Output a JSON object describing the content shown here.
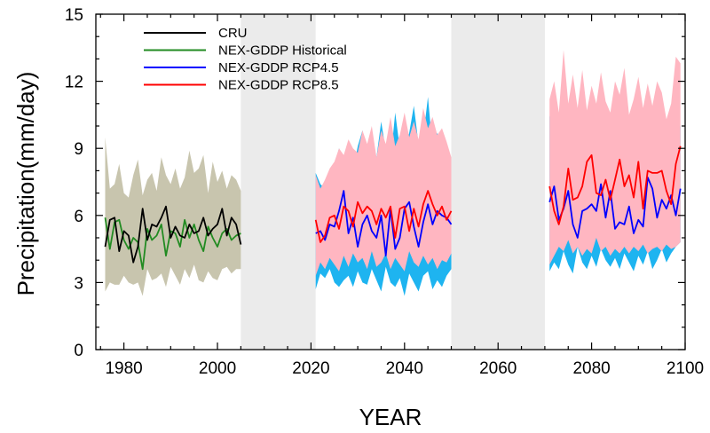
{
  "chart_data": {
    "type": "line",
    "xlabel": "YEAR",
    "ylabel": "Precipitation(mm/day)",
    "xlim": [
      1974,
      2100
    ],
    "ylim": [
      0,
      15
    ],
    "x_ticks": [
      1980,
      2000,
      2020,
      2040,
      2060,
      2080,
      2100
    ],
    "x_tick_labels": [
      "1980",
      "2000",
      "2020",
      "2040",
      "2060",
      "2080",
      "2100"
    ],
    "y_ticks": [
      0,
      3,
      6,
      9,
      12,
      15
    ],
    "y_tick_labels": [
      "0",
      "3",
      "6",
      "9",
      "12",
      "15"
    ],
    "grid": false,
    "legend_position": "top-left",
    "shaded_gaps": [
      [
        2005,
        2021
      ],
      [
        2050,
        2070
      ]
    ],
    "colors": {
      "cru": "#000000",
      "historical": "#228B22",
      "rcp45": "#0000FF",
      "rcp85": "#FF0000",
      "historical_band": "#C8C5AE",
      "rcp45_band": "#1EB4F0",
      "rcp85_band": "#FFB6C1",
      "gap": "#EBEBEB"
    },
    "legend": [
      {
        "label": "CRU",
        "color": "#000000"
      },
      {
        "label": "NEX-GDDP Historical",
        "color": "#228B22"
      },
      {
        "label": "NEX-GDDP RCP4.5",
        "color": "#0000FF"
      },
      {
        "label": "NEX-GDDP RCP8.5",
        "color": "#FF0000"
      }
    ],
    "series": [
      {
        "name": "CRU",
        "x": [
          1976,
          1977,
          1978,
          1979,
          1980,
          1981,
          1982,
          1983,
          1984,
          1985,
          1986,
          1987,
          1988,
          1989,
          1990,
          1991,
          1992,
          1993,
          1994,
          1995,
          1996,
          1997,
          1998,
          1999,
          2000,
          2001,
          2002,
          2003,
          2004,
          2005
        ],
        "values": [
          4.6,
          5.8,
          5.9,
          4.4,
          5.3,
          5.1,
          3.9,
          4.6,
          6.3,
          4.9,
          5.6,
          5.5,
          5.9,
          6.4,
          5.0,
          5.5,
          5.1,
          5.0,
          5.6,
          5.2,
          5.3,
          5.9,
          5.1,
          5.4,
          5.6,
          6.3,
          5.1,
          5.9,
          5.6,
          4.7
        ]
      },
      {
        "name": "NEX-GDDP Historical",
        "x": [
          1976,
          1977,
          1978,
          1979,
          1980,
          1981,
          1982,
          1983,
          1984,
          1985,
          1986,
          1987,
          1988,
          1989,
          1990,
          1991,
          1992,
          1993,
          1994,
          1995,
          1996,
          1997,
          1998,
          1999,
          2000,
          2001,
          2002,
          2003,
          2004,
          2005
        ],
        "values": [
          5.9,
          4.5,
          5.7,
          5.8,
          4.9,
          4.5,
          5.0,
          4.8,
          3.6,
          5.4,
          4.9,
          5.1,
          5.6,
          4.2,
          5.3,
          5.2,
          4.6,
          5.8,
          5.0,
          5.6,
          4.9,
          4.4,
          5.5,
          5.0,
          4.6,
          5.2,
          5.4,
          4.9,
          5.1,
          5.2
        ]
      },
      {
        "name": "NEX-GDDP RCP4.5",
        "x": [
          2021,
          2022,
          2023,
          2024,
          2025,
          2026,
          2027,
          2028,
          2029,
          2030,
          2031,
          2032,
          2033,
          2034,
          2035,
          2036,
          2037,
          2038,
          2039,
          2040,
          2041,
          2042,
          2043,
          2044,
          2045,
          2046,
          2047,
          2048,
          2049,
          2050,
          2071,
          2072,
          2073,
          2074,
          2075,
          2076,
          2077,
          2078,
          2079,
          2080,
          2081,
          2082,
          2083,
          2084,
          2085,
          2086,
          2087,
          2088,
          2089,
          2090,
          2091,
          2092,
          2093,
          2094,
          2095,
          2096,
          2097,
          2098,
          2099
        ],
        "values": [
          5.2,
          5.3,
          4.9,
          5.6,
          5.5,
          6.2,
          7.1,
          5.2,
          5.9,
          4.6,
          5.6,
          6.0,
          5.3,
          5.0,
          6.0,
          4.2,
          6.3,
          4.5,
          5.0,
          6.3,
          6.6,
          5.5,
          4.6,
          5.7,
          6.5,
          5.6,
          6.2,
          6.0,
          5.9,
          5.6,
          6.6,
          7.3,
          5.8,
          6.3,
          7.1,
          5.6,
          5.0,
          6.2,
          6.3,
          6.5,
          6.2,
          7.4,
          5.9,
          7.1,
          5.4,
          5.7,
          5.6,
          6.4,
          5.2,
          5.8,
          5.5,
          7.7,
          7.2,
          5.9,
          6.7,
          6.3,
          6.9,
          6.0,
          7.2
        ]
      },
      {
        "name": "NEX-GDDP RCP8.5",
        "x": [
          2021,
          2022,
          2023,
          2024,
          2025,
          2026,
          2027,
          2028,
          2029,
          2030,
          2031,
          2032,
          2033,
          2034,
          2035,
          2036,
          2037,
          2038,
          2039,
          2040,
          2041,
          2042,
          2043,
          2044,
          2045,
          2046,
          2047,
          2048,
          2049,
          2050,
          2071,
          2072,
          2073,
          2074,
          2075,
          2076,
          2077,
          2078,
          2079,
          2080,
          2081,
          2082,
          2083,
          2084,
          2085,
          2086,
          2087,
          2088,
          2089,
          2090,
          2091,
          2092,
          2093,
          2094,
          2095,
          2096,
          2097,
          2098,
          2099
        ],
        "values": [
          5.8,
          4.8,
          5.1,
          5.9,
          6.0,
          5.4,
          6.4,
          6.2,
          5.5,
          6.6,
          6.1,
          6.4,
          6.2,
          5.6,
          6.3,
          5.9,
          6.4,
          5.0,
          6.3,
          6.4,
          5.3,
          6.3,
          5.5,
          6.5,
          7.1,
          6.5,
          6.0,
          6.4,
          5.8,
          6.2,
          7.3,
          6.2,
          5.6,
          6.4,
          8.1,
          6.7,
          6.8,
          7.3,
          8.4,
          8.7,
          7.0,
          6.9,
          7.6,
          6.7,
          7.6,
          8.5,
          7.3,
          7.8,
          6.8,
          8.4,
          6.3,
          8.0,
          7.9,
          7.9,
          8.0,
          7.1,
          6.5,
          8.3,
          9.1
        ]
      }
    ],
    "bands": [
      {
        "name": "NEX-GDDP Historical",
        "x": [
          1976,
          1977,
          1978,
          1979,
          1980,
          1981,
          1982,
          1983,
          1984,
          1985,
          1986,
          1987,
          1988,
          1989,
          1990,
          1991,
          1992,
          1993,
          1994,
          1995,
          1996,
          1997,
          1998,
          1999,
          2000,
          2001,
          2002,
          2003,
          2004,
          2005
        ],
        "upper": [
          9.5,
          7.2,
          7.4,
          8.3,
          7.0,
          6.8,
          7.8,
          8.5,
          6.9,
          7.6,
          7.9,
          7.1,
          8.6,
          7.8,
          7.4,
          8.1,
          7.2,
          7.7,
          8.9,
          7.9,
          8.1,
          8.7,
          7.0,
          8.4,
          7.5,
          8.0,
          7.2,
          7.8,
          7.6,
          7.1
        ],
        "lower": [
          2.6,
          3.0,
          2.9,
          2.9,
          3.3,
          3.0,
          2.9,
          3.0,
          2.4,
          3.6,
          3.1,
          3.2,
          3.4,
          2.8,
          3.7,
          3.3,
          2.9,
          3.6,
          3.2,
          3.8,
          3.1,
          3.0,
          3.5,
          3.2,
          3.1,
          3.6,
          3.7,
          3.4,
          3.6,
          3.6
        ]
      },
      {
        "name": "NEX-GDDP RCP4.5",
        "x": [
          2021,
          2022,
          2023,
          2024,
          2025,
          2026,
          2027,
          2028,
          2029,
          2030,
          2031,
          2032,
          2033,
          2034,
          2035,
          2036,
          2037,
          2038,
          2039,
          2040,
          2041,
          2042,
          2043,
          2044,
          2045,
          2046,
          2047,
          2048,
          2049,
          2050,
          2071,
          2072,
          2073,
          2074,
          2075,
          2076,
          2077,
          2078,
          2079,
          2080,
          2081,
          2082,
          2083,
          2084,
          2085,
          2086,
          2087,
          2088,
          2089,
          2090,
          2091,
          2092,
          2093,
          2094,
          2095,
          2096,
          2097,
          2098,
          2099
        ],
        "upper": [
          7.9,
          7.4,
          7.2,
          7.8,
          8.3,
          9.0,
          8.6,
          9.3,
          8.0,
          9.1,
          9.8,
          8.1,
          9.5,
          8.6,
          10.2,
          8.9,
          8.4,
          10.6,
          9.0,
          8.8,
          9.7,
          10.9,
          9.2,
          9.5,
          11.3,
          9.0,
          9.7,
          8.8,
          8.9,
          8.0,
          10.4,
          11.5,
          9.0,
          10.2,
          9.1,
          11.6,
          10.7,
          9.5,
          10.3,
          9.8,
          9.4,
          10.9,
          10.1,
          9.2,
          10.7,
          9.6,
          9.9,
          10.5,
          9.4,
          10.8,
          9.2,
          10.2,
          9.8,
          9.6,
          10.3,
          9.0,
          10.8,
          9.5,
          10.0
        ],
        "lower": [
          2.7,
          3.4,
          3.2,
          3.6,
          3.0,
          2.8,
          3.1,
          3.3,
          2.8,
          3.5,
          3.0,
          2.9,
          3.6,
          3.1,
          2.6,
          3.7,
          3.0,
          2.8,
          3.2,
          2.4,
          3.4,
          3.0,
          2.6,
          3.3,
          3.5,
          2.7,
          3.1,
          2.8,
          3.3,
          3.6,
          3.5,
          3.9,
          3.6,
          4.4,
          3.8,
          3.4,
          4.6,
          3.9,
          3.6,
          4.2,
          3.7,
          4.5,
          4.0,
          3.7,
          4.1,
          3.6,
          4.3,
          3.9,
          3.5,
          4.2,
          3.8,
          4.4,
          3.6,
          4.0,
          4.5,
          3.9,
          4.3,
          4.6,
          4.8
        ]
      },
      {
        "name": "NEX-GDDP RCP8.5",
        "x": [
          2021,
          2022,
          2023,
          2024,
          2025,
          2026,
          2027,
          2028,
          2029,
          2030,
          2031,
          2032,
          2033,
          2034,
          2035,
          2036,
          2037,
          2038,
          2039,
          2040,
          2041,
          2042,
          2043,
          2044,
          2045,
          2046,
          2047,
          2048,
          2049,
          2050,
          2071,
          2072,
          2073,
          2074,
          2075,
          2076,
          2077,
          2078,
          2079,
          2080,
          2081,
          2082,
          2083,
          2084,
          2085,
          2086,
          2087,
          2088,
          2089,
          2090,
          2091,
          2092,
          2093,
          2094,
          2095,
          2096,
          2097,
          2098,
          2099
        ],
        "upper": [
          7.8,
          7.2,
          7.6,
          8.1,
          8.4,
          9.0,
          8.7,
          9.4,
          9.0,
          8.8,
          9.8,
          9.2,
          10.0,
          8.6,
          9.8,
          9.2,
          10.4,
          9.1,
          9.6,
          10.6,
          9.5,
          10.2,
          9.4,
          10.8,
          9.9,
          10.4,
          9.6,
          9.9,
          9.3,
          8.6,
          11.2,
          12.0,
          10.6,
          13.4,
          11.0,
          12.3,
          10.8,
          12.5,
          10.7,
          11.8,
          11.0,
          12.4,
          11.1,
          10.6,
          12.0,
          11.4,
          12.6,
          10.5,
          11.2,
          12.2,
          10.8,
          11.9,
          10.9,
          12.0,
          11.5,
          10.3,
          11.0,
          13.1,
          12.8
        ],
        "lower": [
          3.3,
          3.9,
          3.6,
          4.1,
          3.8,
          3.5,
          4.2,
          3.7,
          4.3,
          3.9,
          4.1,
          3.6,
          4.4,
          3.7,
          3.9,
          4.3,
          3.6,
          4.1,
          3.8,
          3.5,
          4.4,
          3.9,
          3.7,
          4.2,
          3.8,
          4.1,
          3.6,
          4.0,
          3.9,
          4.3,
          3.8,
          4.2,
          4.6,
          4.4,
          4.9,
          4.3,
          4.6,
          4.2,
          4.5,
          4.3,
          5.0,
          4.4,
          4.6,
          4.2,
          4.5,
          4.3,
          4.6,
          4.3,
          4.6,
          4.4,
          4.7,
          4.3,
          4.5,
          4.6,
          4.4,
          4.7,
          4.5,
          4.6,
          4.8
        ]
      }
    ]
  }
}
